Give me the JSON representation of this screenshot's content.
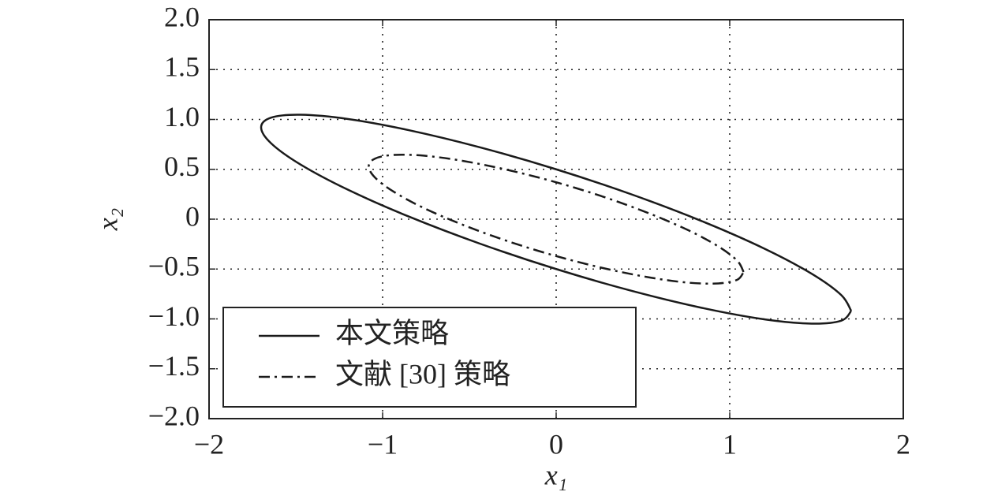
{
  "chart_data": {
    "type": "line",
    "xlabel": "x₁",
    "ylabel": "x₂",
    "xlim": [
      -2,
      2
    ],
    "ylim": [
      -2,
      2
    ],
    "xticks": [
      {
        "value": -2,
        "label": "−2"
      },
      {
        "value": -1,
        "label": "−1"
      },
      0,
      1,
      2
    ],
    "yticks": [
      {
        "value": -2,
        "label": "−2.0"
      },
      {
        "value": -1.5,
        "label": "−1.5"
      },
      {
        "value": -1,
        "label": "−1.0"
      },
      {
        "value": -0.5,
        "label": "−0.5"
      },
      0,
      {
        "value": 0.5,
        "label": "0.5"
      },
      {
        "value": 1,
        "label": "1.0"
      },
      {
        "value": 1.5,
        "label": "1.5"
      },
      {
        "value": 2,
        "label": "2.0"
      }
    ],
    "grid": true,
    "legend": "lower left",
    "series": [
      {
        "name": "本文策略",
        "color": "#1a1a1a",
        "dash": "solid",
        "x": [
          1.7,
          1.642,
          1.472,
          1.202,
          0.85,
          0.44,
          0,
          -0.44,
          -0.85,
          -1.202,
          -1.472,
          -1.642,
          -1.7,
          -1.642,
          -1.472,
          -1.202,
          -0.85,
          -0.44,
          0,
          0.44,
          0.85,
          1.202,
          1.472,
          1.642,
          1.7
        ],
        "values": [
          -0.92,
          -0.76,
          -0.547,
          -0.297,
          -0.027,
          0.245,
          0.5,
          0.721,
          0.893,
          1.005,
          1.047,
          1.018,
          0.92,
          0.76,
          0.547,
          0.297,
          0.027,
          -0.245,
          -0.5,
          -0.721,
          -0.893,
          -1.005,
          -1.047,
          -1.018,
          -0.92
        ]
      },
      {
        "name": "文献 [30] 策略",
        "color": "#1a1a1a",
        "dash": "dashdot",
        "x": [
          1.08,
          1.043,
          0.935,
          0.764,
          0.54,
          0.28,
          0,
          -0.28,
          -0.54,
          -0.764,
          -0.935,
          -1.043,
          -1.08,
          -1.043,
          -0.935,
          -0.764,
          -0.54,
          -0.28,
          0,
          0.28,
          0.54,
          0.764,
          0.935,
          1.043,
          1.08
        ],
        "values": [
          -0.53,
          -0.416,
          -0.274,
          -0.113,
          0.055,
          0.22,
          0.37,
          0.494,
          0.585,
          0.637,
          0.644,
          0.608,
          0.53,
          0.416,
          0.274,
          0.113,
          -0.055,
          -0.22,
          -0.37,
          -0.494,
          -0.585,
          -0.637,
          -0.644,
          -0.608,
          -0.53
        ]
      }
    ]
  }
}
